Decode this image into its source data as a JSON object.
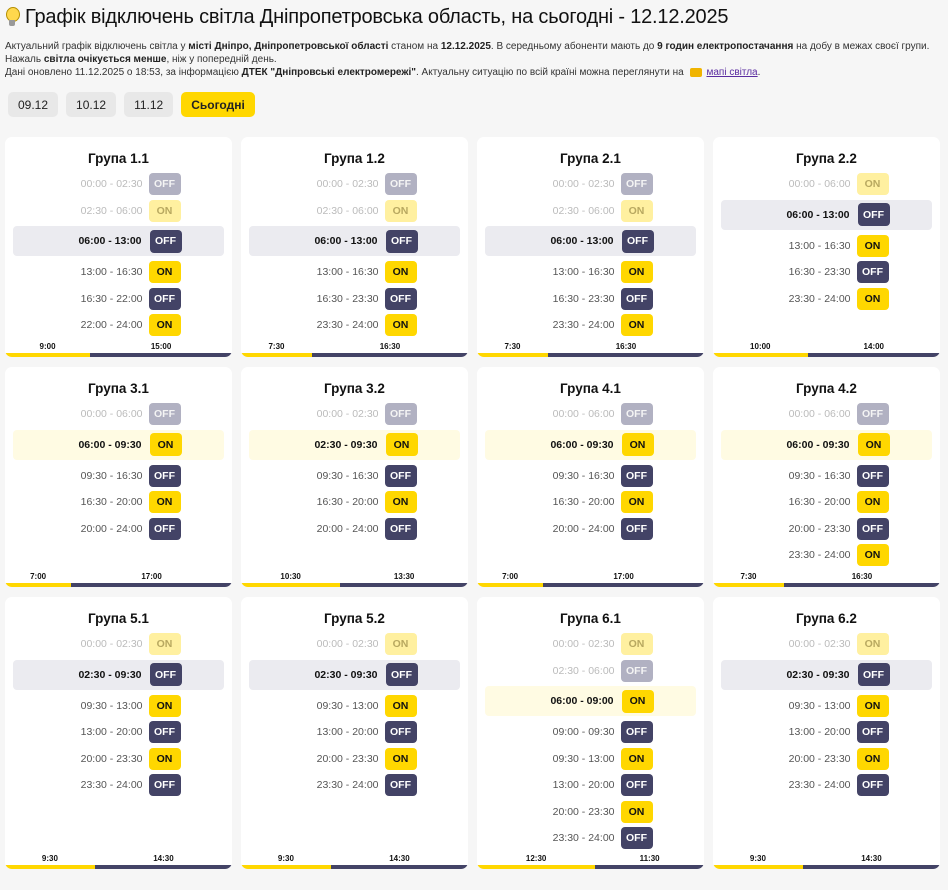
{
  "header": {
    "title": "Графік відключень світла Дніпропетровська область, на сьогодні - 12.12.2025",
    "desc1": [
      "Актуальний графік відключень світла у ",
      "місті Дніпро, Дніпропетровської області",
      " станом на ",
      "12.12.2025",
      ". В середньому абоненти мають до ",
      "9 годин електропостачання",
      " на добу в межах своєї групи. Нажаль ",
      "світла очікується менше",
      ", ніж у попередній день."
    ],
    "desc2": [
      "Дані оновлено 11.12.2025 о 18:53, за інформацією ",
      "ДТЕК \"Дніпровські електромережі\"",
      ". Актуальну ситуацію по всій країні можна переглянути на "
    ],
    "map_link": "мапі світла",
    "end": "."
  },
  "tabs": [
    "09.12",
    "10.12",
    "11.12",
    "Сьогодні"
  ],
  "active_tab": 3,
  "groups": [
    {
      "name": "Група 1.1",
      "on": "9:00",
      "off": "15:00",
      "on_fraction": 0.375,
      "rows": [
        [
          "00:00 - 02:30",
          "OFF",
          "past"
        ],
        [
          "02:30 - 06:00",
          "ON",
          "past"
        ],
        [
          "06:00 - 13:00",
          "OFF",
          "cur"
        ],
        [
          "13:00 - 16:30",
          "ON",
          ""
        ],
        [
          "16:30 - 22:00",
          "OFF",
          ""
        ],
        [
          "22:00 - 24:00",
          "ON",
          ""
        ]
      ]
    },
    {
      "name": "Група 1.2",
      "on": "7:30",
      "off": "16:30",
      "on_fraction": 0.3125,
      "rows": [
        [
          "00:00 - 02:30",
          "OFF",
          "past"
        ],
        [
          "02:30 - 06:00",
          "ON",
          "past"
        ],
        [
          "06:00 - 13:00",
          "OFF",
          "cur"
        ],
        [
          "13:00 - 16:30",
          "ON",
          ""
        ],
        [
          "16:30 - 23:30",
          "OFF",
          ""
        ],
        [
          "23:30 - 24:00",
          "ON",
          ""
        ]
      ]
    },
    {
      "name": "Група 2.1",
      "on": "7:30",
      "off": "16:30",
      "on_fraction": 0.3125,
      "rows": [
        [
          "00:00 - 02:30",
          "OFF",
          "past"
        ],
        [
          "02:30 - 06:00",
          "ON",
          "past"
        ],
        [
          "06:00 - 13:00",
          "OFF",
          "cur"
        ],
        [
          "13:00 - 16:30",
          "ON",
          ""
        ],
        [
          "16:30 - 23:30",
          "OFF",
          ""
        ],
        [
          "23:30 - 24:00",
          "ON",
          ""
        ]
      ]
    },
    {
      "name": "Група 2.2",
      "on": "10:00",
      "off": "14:00",
      "on_fraction": 0.4167,
      "rows": [
        [
          "00:00 - 06:00",
          "ON",
          "past"
        ],
        [
          "06:00 - 13:00",
          "OFF",
          "cur"
        ],
        [
          "13:00 - 16:30",
          "ON",
          ""
        ],
        [
          "16:30 - 23:30",
          "OFF",
          ""
        ],
        [
          "23:30 - 24:00",
          "ON",
          ""
        ]
      ]
    },
    {
      "name": "Група 3.1",
      "on": "7:00",
      "off": "17:00",
      "on_fraction": 0.2917,
      "rows": [
        [
          "00:00 - 06:00",
          "OFF",
          "past"
        ],
        [
          "06:00 - 09:30",
          "ON",
          "cur"
        ],
        [
          "09:30 - 16:30",
          "OFF",
          ""
        ],
        [
          "16:30 - 20:00",
          "ON",
          ""
        ],
        [
          "20:00 - 24:00",
          "OFF",
          ""
        ]
      ]
    },
    {
      "name": "Група 3.2",
      "on": "10:30",
      "off": "13:30",
      "on_fraction": 0.4375,
      "rows": [
        [
          "00:00 - 02:30",
          "OFF",
          "past"
        ],
        [
          "02:30 - 09:30",
          "ON",
          "cur"
        ],
        [
          "09:30 - 16:30",
          "OFF",
          ""
        ],
        [
          "16:30 - 20:00",
          "ON",
          ""
        ],
        [
          "20:00 - 24:00",
          "OFF",
          ""
        ]
      ]
    },
    {
      "name": "Група 4.1",
      "on": "7:00",
      "off": "17:00",
      "on_fraction": 0.2917,
      "rows": [
        [
          "00:00 - 06:00",
          "OFF",
          "past"
        ],
        [
          "06:00 - 09:30",
          "ON",
          "cur"
        ],
        [
          "09:30 - 16:30",
          "OFF",
          ""
        ],
        [
          "16:30 - 20:00",
          "ON",
          ""
        ],
        [
          "20:00 - 24:00",
          "OFF",
          ""
        ]
      ]
    },
    {
      "name": "Група 4.2",
      "on": "7:30",
      "off": "16:30",
      "on_fraction": 0.3125,
      "rows": [
        [
          "00:00 - 06:00",
          "OFF",
          "past"
        ],
        [
          "06:00 - 09:30",
          "ON",
          "cur"
        ],
        [
          "09:30 - 16:30",
          "OFF",
          ""
        ],
        [
          "16:30 - 20:00",
          "ON",
          ""
        ],
        [
          "20:00 - 23:30",
          "OFF",
          ""
        ],
        [
          "23:30 - 24:00",
          "ON",
          ""
        ]
      ]
    },
    {
      "name": "Група 5.1",
      "on": "9:30",
      "off": "14:30",
      "on_fraction": 0.3958,
      "rows": [
        [
          "00:00 - 02:30",
          "ON",
          "past"
        ],
        [
          "02:30 - 09:30",
          "OFF",
          "cur"
        ],
        [
          "09:30 - 13:00",
          "ON",
          ""
        ],
        [
          "13:00 - 20:00",
          "OFF",
          ""
        ],
        [
          "20:00 - 23:30",
          "ON",
          ""
        ],
        [
          "23:30 - 24:00",
          "OFF",
          ""
        ]
      ]
    },
    {
      "name": "Група 5.2",
      "on": "9:30",
      "off": "14:30",
      "on_fraction": 0.3958,
      "rows": [
        [
          "00:00 - 02:30",
          "ON",
          "past"
        ],
        [
          "02:30 - 09:30",
          "OFF",
          "cur"
        ],
        [
          "09:30 - 13:00",
          "ON",
          ""
        ],
        [
          "13:00 - 20:00",
          "OFF",
          ""
        ],
        [
          "20:00 - 23:30",
          "ON",
          ""
        ],
        [
          "23:30 - 24:00",
          "OFF",
          ""
        ]
      ]
    },
    {
      "name": "Група 6.1",
      "on": "12:30",
      "off": "11:30",
      "on_fraction": 0.5208,
      "rows": [
        [
          "00:00 - 02:30",
          "ON",
          "past"
        ],
        [
          "02:30 - 06:00",
          "OFF",
          "past"
        ],
        [
          "06:00 - 09:00",
          "ON",
          "cur"
        ],
        [
          "09:00 - 09:30",
          "OFF",
          ""
        ],
        [
          "09:30 - 13:00",
          "ON",
          ""
        ],
        [
          "13:00 - 20:00",
          "OFF",
          ""
        ],
        [
          "20:00 - 23:30",
          "ON",
          ""
        ],
        [
          "23:30 - 24:00",
          "OFF",
          ""
        ]
      ]
    },
    {
      "name": "Група 6.2",
      "on": "9:30",
      "off": "14:30",
      "on_fraction": 0.3958,
      "rows": [
        [
          "00:00 - 02:30",
          "ON",
          "past"
        ],
        [
          "02:30 - 09:30",
          "OFF",
          "cur"
        ],
        [
          "09:30 - 13:00",
          "ON",
          ""
        ],
        [
          "13:00 - 20:00",
          "OFF",
          ""
        ],
        [
          "20:00 - 23:30",
          "ON",
          ""
        ],
        [
          "23:30 - 24:00",
          "OFF",
          ""
        ]
      ]
    }
  ]
}
